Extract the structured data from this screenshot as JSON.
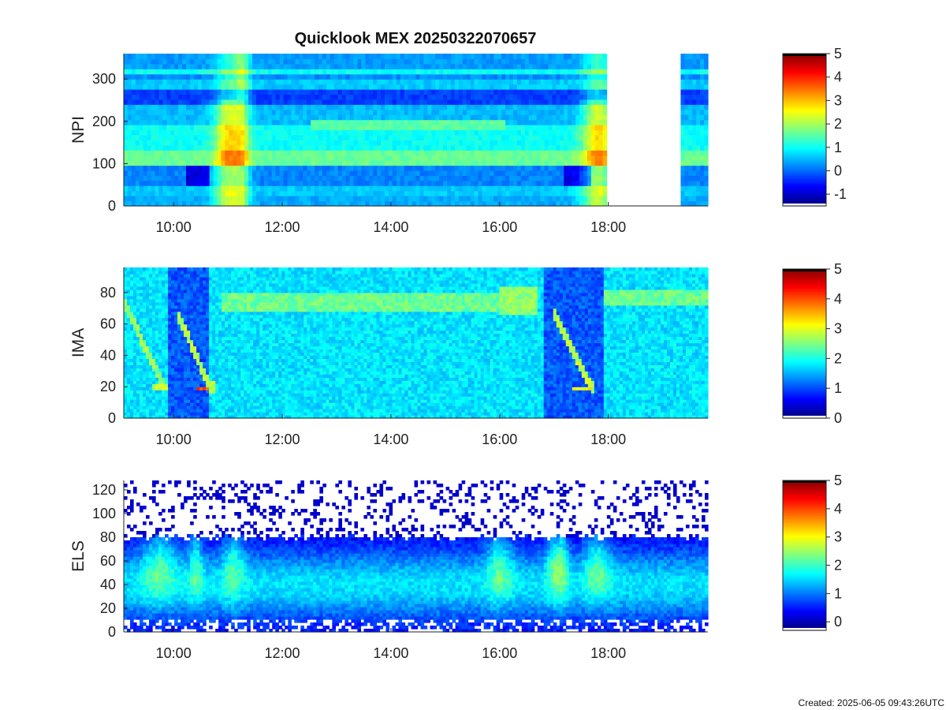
{
  "chart_data": [
    {
      "type": "heatmap",
      "id": "npi",
      "title": "Quicklook MEX 20250322070657",
      "ylabel": "NPI",
      "yticks": [
        0,
        100,
        200,
        300
      ],
      "ylim": [
        0,
        360
      ],
      "xlim": [
        "09:05",
        "19:50"
      ],
      "xticks": [
        "10:00",
        "12:00",
        "14:00",
        "16:00",
        "18:00"
      ],
      "data_gaps": [
        [
          "18:00",
          "19:22"
        ]
      ],
      "colorbar": {
        "min": -1.5,
        "max": 5,
        "ticks": [
          5,
          4,
          3,
          2,
          1,
          0,
          -1
        ]
      }
    },
    {
      "type": "heatmap",
      "id": "ima",
      "ylabel": "IMA",
      "yticks": [
        0,
        20,
        40,
        60,
        80
      ],
      "ylim": [
        0,
        96
      ],
      "xlim": [
        "09:05",
        "19:50"
      ],
      "xticks": [
        "10:00",
        "12:00",
        "14:00",
        "16:00",
        "18:00"
      ],
      "colorbar": {
        "min": 0,
        "max": 5,
        "ticks": [
          5,
          4,
          3,
          2,
          1,
          0
        ]
      }
    },
    {
      "type": "heatmap",
      "id": "els",
      "ylabel": "ELS",
      "yticks": [
        0,
        20,
        40,
        60,
        80,
        100,
        120
      ],
      "ylim": [
        0,
        128
      ],
      "xlim": [
        "09:05",
        "19:50"
      ],
      "xticks": [
        "10:00",
        "12:00",
        "14:00",
        "16:00",
        "18:00"
      ],
      "colorbar": {
        "min": -0.3,
        "max": 5,
        "ticks": [
          5,
          4,
          3,
          2,
          1,
          0
        ]
      }
    }
  ],
  "footer": {
    "created": "Created: 2025-06-05 09:43:26UTC"
  }
}
